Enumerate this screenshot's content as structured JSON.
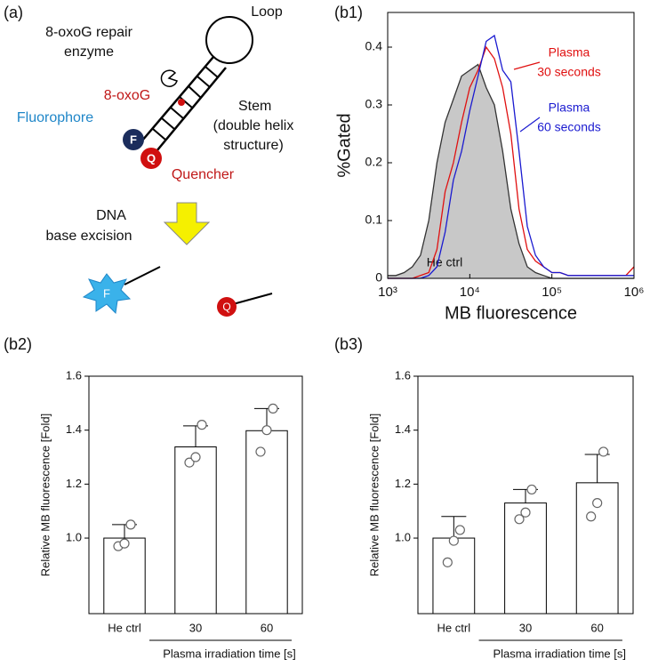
{
  "diagram": {
    "panel_label": "(a)",
    "enzyme_label": [
      "8-oxoG repair",
      "enzyme"
    ],
    "loop_label": "Loop",
    "lesion_label": "8-oxoG",
    "stem_label": [
      "Stem",
      "(double helix",
      "structure)"
    ],
    "fluorophore_label": "Fluorophore",
    "quencher_label": "Quencher",
    "f_symbol": "F",
    "q_symbol": "Q",
    "excision_label": [
      "DNA",
      "base excision"
    ]
  },
  "chart_data": [
    {
      "type": "line",
      "panel_label": "(b1)",
      "xlabel": "MB fluorescence",
      "ylabel": "%Gated",
      "xscale": "log",
      "x": [
        1000,
        1259,
        1585,
        1995,
        2512,
        3162,
        3981,
        5012,
        6310,
        7943,
        10000,
        12589,
        15849,
        19953,
        25119,
        31623,
        39811,
        50119,
        63096,
        79433,
        100000,
        125893,
        158489,
        199526,
        251189,
        316228,
        398107,
        501187,
        630957,
        794328,
        1000000
      ],
      "xlim": [
        1000,
        1000000
      ],
      "xticks": [
        {
          "value": 1000,
          "label": "10³"
        },
        {
          "value": 10000,
          "label": "10⁴"
        },
        {
          "value": 100000,
          "label": "10⁵"
        },
        {
          "value": 1000000,
          "label": "10⁶"
        }
      ],
      "ylim": [
        0,
        0.46
      ],
      "yticks": [
        0,
        0.1,
        0.2,
        0.3,
        0.4
      ],
      "series": [
        {
          "label": [
            "He ctrl"
          ],
          "color": "#333333",
          "fill": "#c8c8c8",
          "values": [
            0.005,
            0.005,
            0.01,
            0.02,
            0.04,
            0.1,
            0.2,
            0.27,
            0.31,
            0.35,
            0.36,
            0.37,
            0.33,
            0.3,
            0.22,
            0.12,
            0.06,
            0.02,
            0.01,
            0.005,
            0,
            0,
            0,
            0,
            0,
            0,
            0,
            0,
            0,
            0,
            0
          ]
        },
        {
          "label": [
            "Plasma",
            "30 seconds"
          ],
          "color": "#e01010",
          "values": [
            0,
            0,
            0,
            0,
            0.005,
            0.01,
            0.05,
            0.15,
            0.2,
            0.27,
            0.33,
            0.36,
            0.4,
            0.38,
            0.33,
            0.25,
            0.12,
            0.05,
            0.03,
            0.02,
            0.01,
            0.01,
            0.005,
            0.005,
            0.005,
            0.005,
            0.005,
            0.005,
            0.005,
            0.005,
            0.02
          ]
        },
        {
          "label": [
            "Plasma",
            "60 seconds"
          ],
          "color": "#1a1ad0",
          "values": [
            0,
            0,
            0,
            0,
            0,
            0.005,
            0.02,
            0.08,
            0.17,
            0.22,
            0.29,
            0.35,
            0.41,
            0.42,
            0.36,
            0.34,
            0.22,
            0.09,
            0.04,
            0.02,
            0.01,
            0.01,
            0.005,
            0.005,
            0.005,
            0.005,
            0.005,
            0.005,
            0.005,
            0.005,
            0.005
          ]
        }
      ]
    },
    {
      "type": "bar",
      "panel_label": "(b2)",
      "ylabel": "Relative MB fluorescence [Fold]",
      "xlabel": "Plasma irradiation time [s]",
      "categories": [
        "He ctrl",
        "30",
        "60"
      ],
      "values": [
        1.0,
        1.338,
        1.398
      ],
      "errors": [
        0.05,
        0.078,
        0.082
      ],
      "points": [
        [
          0.97,
          0.98,
          1.05
        ],
        [
          1.28,
          1.3,
          1.42
        ],
        [
          1.32,
          1.4,
          1.48
        ]
      ],
      "ylim": [
        0.72,
        1.6
      ],
      "yticks": [
        {
          "value": 1.0,
          "label": "1.0"
        },
        {
          "value": 1.2,
          "label": "1.2"
        },
        {
          "value": 1.4,
          "label": "1.4"
        },
        {
          "value": 1.6,
          "label": "1.6"
        }
      ],
      "color": "#ffffff"
    },
    {
      "type": "bar",
      "panel_label": "(b3)",
      "ylabel": "Relative MB fluorescence [Fold]",
      "xlabel": "Plasma irradiation time [s]",
      "categories": [
        "He ctrl",
        "30",
        "60"
      ],
      "values": [
        1.0,
        1.13,
        1.205
      ],
      "errors": [
        0.08,
        0.05,
        0.105
      ],
      "points": [
        [
          0.91,
          0.99,
          1.03
        ],
        [
          1.07,
          1.095,
          1.18
        ],
        [
          1.08,
          1.13,
          1.32
        ]
      ],
      "ylim": [
        0.72,
        1.6
      ],
      "yticks": [
        {
          "value": 1.0,
          "label": "1.0"
        },
        {
          "value": 1.2,
          "label": "1.2"
        },
        {
          "value": 1.4,
          "label": "1.4"
        },
        {
          "value": 1.6,
          "label": "1.6"
        }
      ],
      "color": "#ffffff"
    }
  ]
}
